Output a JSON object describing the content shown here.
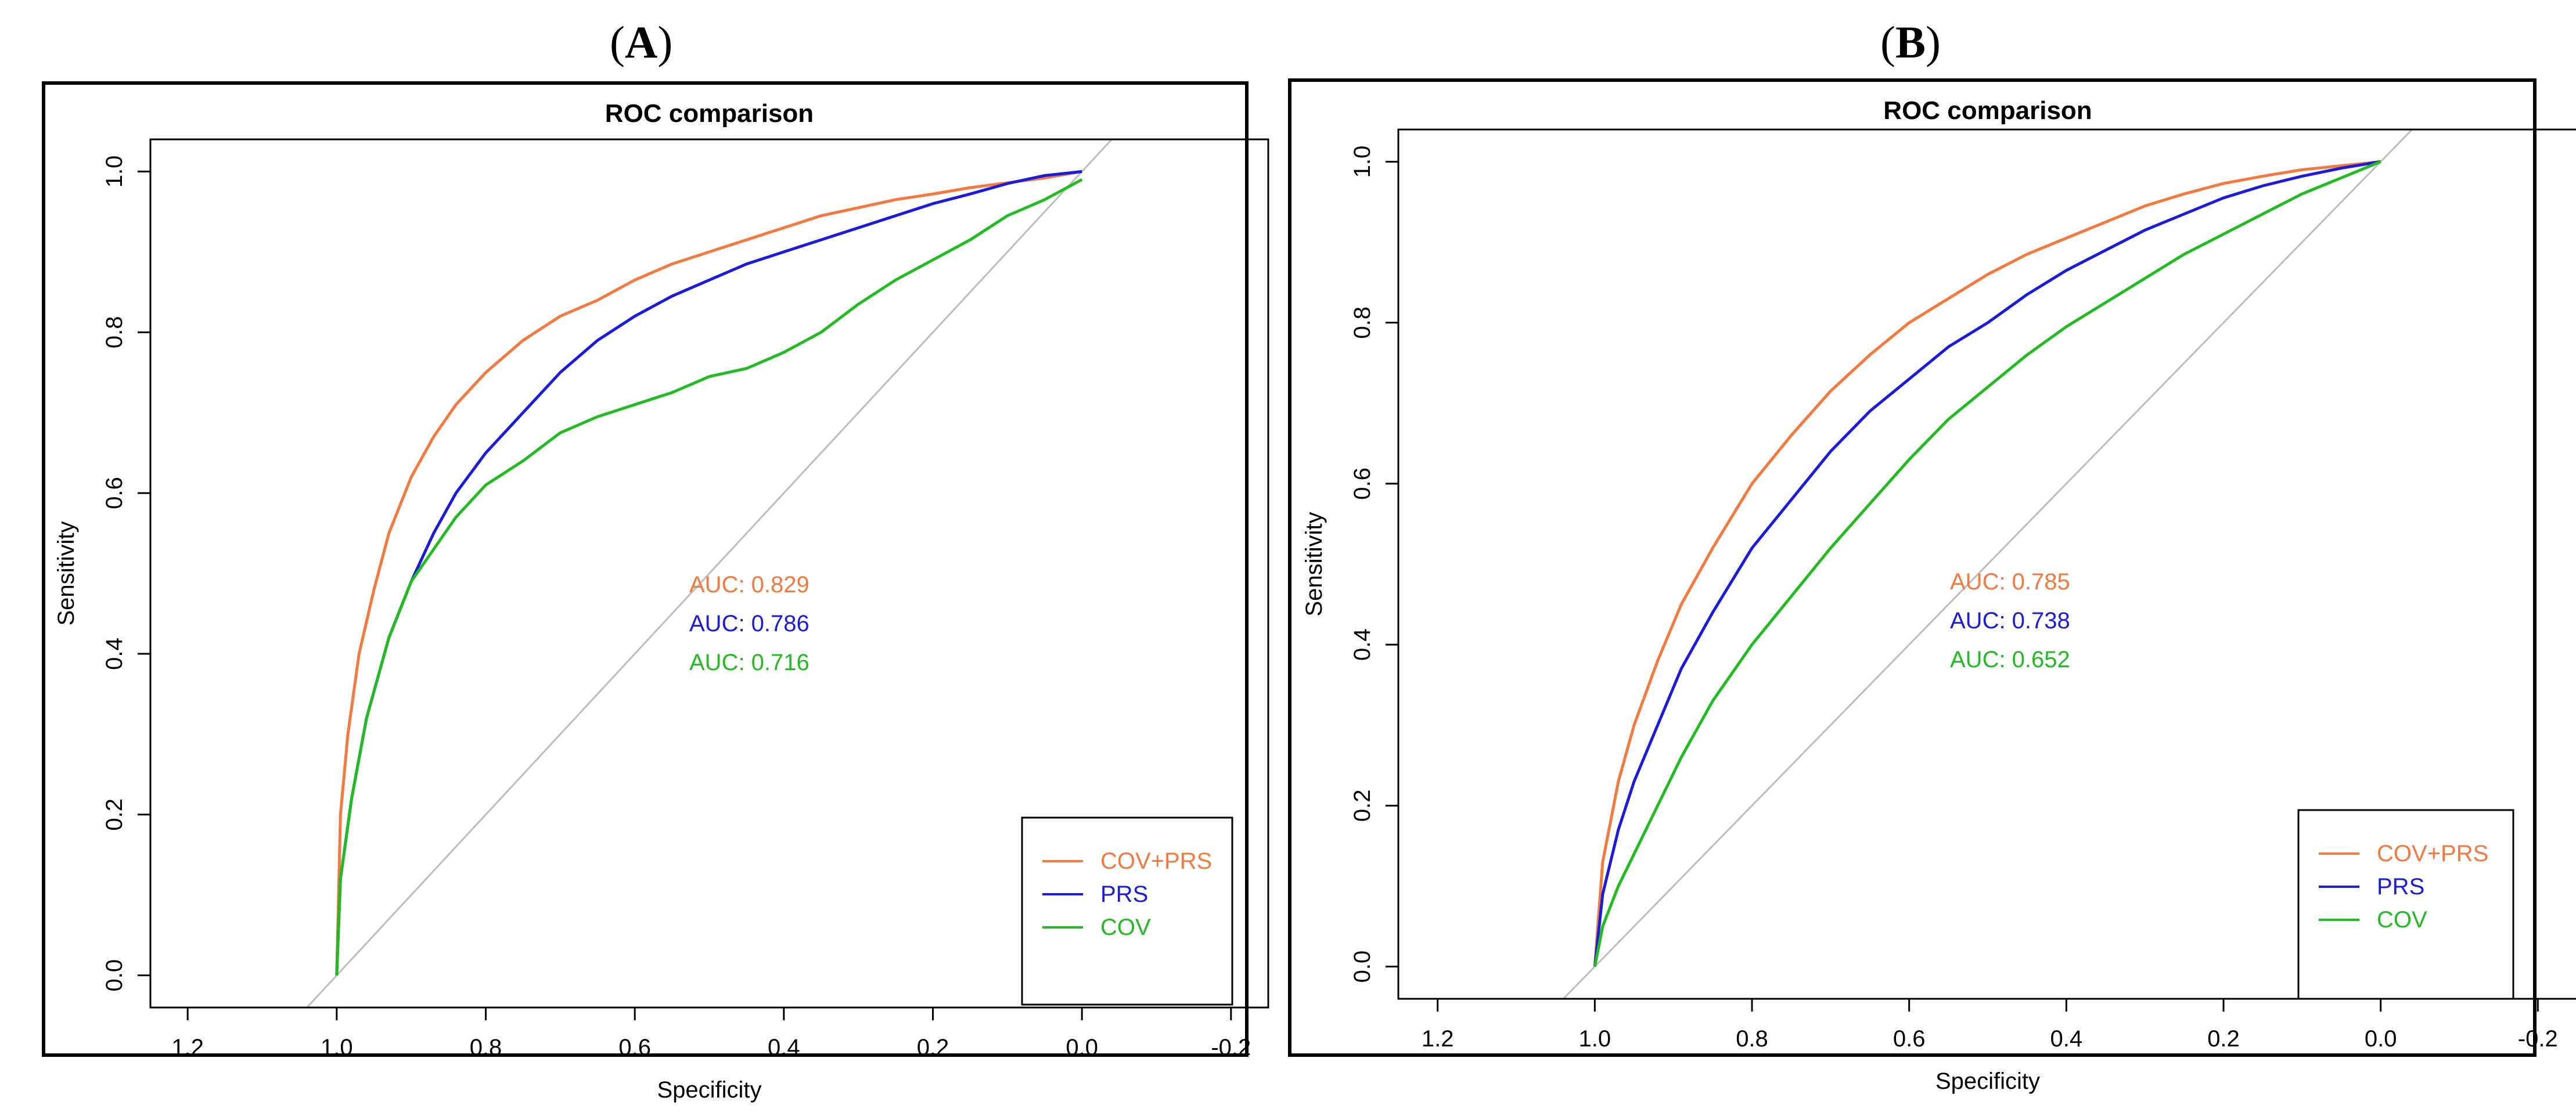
{
  "panels": [
    {
      "label_letter": "A"
    },
    {
      "label_letter": "B"
    }
  ],
  "chart_data": [
    {
      "type": "line",
      "panel": "A",
      "title": "ROC comparison",
      "xlabel": "Specificity",
      "ylabel": "Sensitivity",
      "xlim": [
        1.25,
        -0.25
      ],
      "ylim": [
        -0.04,
        1.04
      ],
      "xticks": [
        1.2,
        1.0,
        0.8,
        0.6,
        0.4,
        0.2,
        0.0,
        -0.2
      ],
      "xtick_labels": [
        "1.2",
        "1.0",
        "0.8",
        "0.6",
        "0.4",
        "0.2",
        "0.0",
        "-0.2"
      ],
      "yticks": [
        0.0,
        0.2,
        0.4,
        0.6,
        0.8,
        1.0
      ],
      "ytick_labels": [
        "0.0",
        "0.2",
        "0.4",
        "0.6",
        "0.8",
        "1.0"
      ],
      "legend_position": "bottom-right",
      "reference_line": "diagonal",
      "series": [
        {
          "name": "COV+PRS",
          "color": "#f4793f",
          "auc_label": "AUC: 0.829",
          "points": [
            [
              1.0,
              0.0
            ],
            [
              0.995,
              0.2
            ],
            [
              0.985,
              0.3
            ],
            [
              0.97,
              0.4
            ],
            [
              0.95,
              0.48
            ],
            [
              0.93,
              0.55
            ],
            [
              0.9,
              0.62
            ],
            [
              0.87,
              0.67
            ],
            [
              0.84,
              0.71
            ],
            [
              0.8,
              0.75
            ],
            [
              0.75,
              0.79
            ],
            [
              0.7,
              0.82
            ],
            [
              0.65,
              0.84
            ],
            [
              0.6,
              0.865
            ],
            [
              0.55,
              0.885
            ],
            [
              0.5,
              0.9
            ],
            [
              0.45,
              0.915
            ],
            [
              0.4,
              0.93
            ],
            [
              0.35,
              0.945
            ],
            [
              0.3,
              0.955
            ],
            [
              0.25,
              0.965
            ],
            [
              0.2,
              0.972
            ],
            [
              0.15,
              0.98
            ],
            [
              0.1,
              0.986
            ],
            [
              0.05,
              0.992
            ],
            [
              0.0,
              1.0
            ]
          ]
        },
        {
          "name": "PRS",
          "color": "#1b1bdb",
          "auc_label": "AUC: 0.786",
          "points": [
            [
              1.0,
              0.0
            ],
            [
              0.995,
              0.12
            ],
            [
              0.98,
              0.22
            ],
            [
              0.96,
              0.32
            ],
            [
              0.93,
              0.42
            ],
            [
              0.9,
              0.49
            ],
            [
              0.87,
              0.55
            ],
            [
              0.84,
              0.6
            ],
            [
              0.8,
              0.65
            ],
            [
              0.75,
              0.7
            ],
            [
              0.7,
              0.75
            ],
            [
              0.65,
              0.79
            ],
            [
              0.6,
              0.82
            ],
            [
              0.55,
              0.845
            ],
            [
              0.5,
              0.865
            ],
            [
              0.45,
              0.885
            ],
            [
              0.4,
              0.9
            ],
            [
              0.35,
              0.915
            ],
            [
              0.3,
              0.93
            ],
            [
              0.25,
              0.945
            ],
            [
              0.2,
              0.96
            ],
            [
              0.15,
              0.972
            ],
            [
              0.1,
              0.985
            ],
            [
              0.05,
              0.995
            ],
            [
              0.0,
              1.0
            ]
          ]
        },
        {
          "name": "COV",
          "color": "#22bb22",
          "auc_label": "AUC: 0.716",
          "points": [
            [
              1.0,
              0.0
            ],
            [
              0.995,
              0.12
            ],
            [
              0.98,
              0.22
            ],
            [
              0.96,
              0.32
            ],
            [
              0.93,
              0.42
            ],
            [
              0.9,
              0.49
            ],
            [
              0.87,
              0.53
            ],
            [
              0.84,
              0.57
            ],
            [
              0.8,
              0.61
            ],
            [
              0.75,
              0.64
            ],
            [
              0.7,
              0.675
            ],
            [
              0.65,
              0.695
            ],
            [
              0.6,
              0.71
            ],
            [
              0.55,
              0.725
            ],
            [
              0.5,
              0.745
            ],
            [
              0.45,
              0.755
            ],
            [
              0.4,
              0.775
            ],
            [
              0.35,
              0.8
            ],
            [
              0.3,
              0.835
            ],
            [
              0.25,
              0.865
            ],
            [
              0.2,
              0.89
            ],
            [
              0.15,
              0.915
            ],
            [
              0.1,
              0.945
            ],
            [
              0.05,
              0.965
            ],
            [
              0.0,
              0.99
            ]
          ]
        }
      ]
    },
    {
      "type": "line",
      "panel": "B",
      "title": "ROC comparison",
      "xlabel": "Specificity",
      "ylabel": "Sensitivity",
      "xlim": [
        1.25,
        -0.25
      ],
      "ylim": [
        -0.04,
        1.04
      ],
      "xticks": [
        1.2,
        1.0,
        0.8,
        0.6,
        0.4,
        0.2,
        0.0,
        -0.2
      ],
      "xtick_labels": [
        "1.2",
        "1.0",
        "0.8",
        "0.6",
        "0.4",
        "0.2",
        "0.0",
        "-0.2"
      ],
      "yticks": [
        0.0,
        0.2,
        0.4,
        0.6,
        0.8,
        1.0
      ],
      "ytick_labels": [
        "0.0",
        "0.2",
        "0.4",
        "0.6",
        "0.8",
        "1.0"
      ],
      "legend_position": "bottom-right",
      "reference_line": "diagonal",
      "series": [
        {
          "name": "COV+PRS",
          "color": "#f4793f",
          "auc_label": "AUC: 0.785",
          "points": [
            [
              1.0,
              0.0
            ],
            [
              0.99,
              0.13
            ],
            [
              0.97,
              0.23
            ],
            [
              0.95,
              0.3
            ],
            [
              0.92,
              0.38
            ],
            [
              0.89,
              0.45
            ],
            [
              0.85,
              0.52
            ],
            [
              0.8,
              0.6
            ],
            [
              0.75,
              0.66
            ],
            [
              0.7,
              0.715
            ],
            [
              0.65,
              0.76
            ],
            [
              0.6,
              0.8
            ],
            [
              0.55,
              0.83
            ],
            [
              0.5,
              0.86
            ],
            [
              0.45,
              0.885
            ],
            [
              0.4,
              0.905
            ],
            [
              0.35,
              0.925
            ],
            [
              0.3,
              0.945
            ],
            [
              0.25,
              0.96
            ],
            [
              0.2,
              0.973
            ],
            [
              0.15,
              0.982
            ],
            [
              0.1,
              0.99
            ],
            [
              0.05,
              0.995
            ],
            [
              0.0,
              1.0
            ]
          ]
        },
        {
          "name": "PRS",
          "color": "#1b1bdb",
          "auc_label": "AUC: 0.738",
          "points": [
            [
              1.0,
              0.0
            ],
            [
              0.99,
              0.09
            ],
            [
              0.97,
              0.17
            ],
            [
              0.95,
              0.23
            ],
            [
              0.92,
              0.3
            ],
            [
              0.89,
              0.37
            ],
            [
              0.85,
              0.44
            ],
            [
              0.8,
              0.52
            ],
            [
              0.75,
              0.58
            ],
            [
              0.7,
              0.64
            ],
            [
              0.65,
              0.69
            ],
            [
              0.6,
              0.73
            ],
            [
              0.55,
              0.77
            ],
            [
              0.5,
              0.8
            ],
            [
              0.45,
              0.835
            ],
            [
              0.4,
              0.865
            ],
            [
              0.35,
              0.89
            ],
            [
              0.3,
              0.915
            ],
            [
              0.25,
              0.935
            ],
            [
              0.2,
              0.955
            ],
            [
              0.15,
              0.97
            ],
            [
              0.1,
              0.982
            ],
            [
              0.05,
              0.992
            ],
            [
              0.0,
              1.0
            ]
          ]
        },
        {
          "name": "COV",
          "color": "#22bb22",
          "auc_label": "AUC: 0.652",
          "points": [
            [
              1.0,
              0.0
            ],
            [
              0.99,
              0.05
            ],
            [
              0.97,
              0.1
            ],
            [
              0.95,
              0.14
            ],
            [
              0.92,
              0.2
            ],
            [
              0.89,
              0.26
            ],
            [
              0.85,
              0.33
            ],
            [
              0.8,
              0.4
            ],
            [
              0.75,
              0.46
            ],
            [
              0.7,
              0.52
            ],
            [
              0.65,
              0.575
            ],
            [
              0.6,
              0.63
            ],
            [
              0.55,
              0.68
            ],
            [
              0.5,
              0.72
            ],
            [
              0.45,
              0.76
            ],
            [
              0.4,
              0.795
            ],
            [
              0.35,
              0.825
            ],
            [
              0.3,
              0.855
            ],
            [
              0.25,
              0.885
            ],
            [
              0.2,
              0.91
            ],
            [
              0.15,
              0.935
            ],
            [
              0.1,
              0.96
            ],
            [
              0.05,
              0.98
            ],
            [
              0.0,
              1.0
            ]
          ]
        }
      ]
    }
  ]
}
